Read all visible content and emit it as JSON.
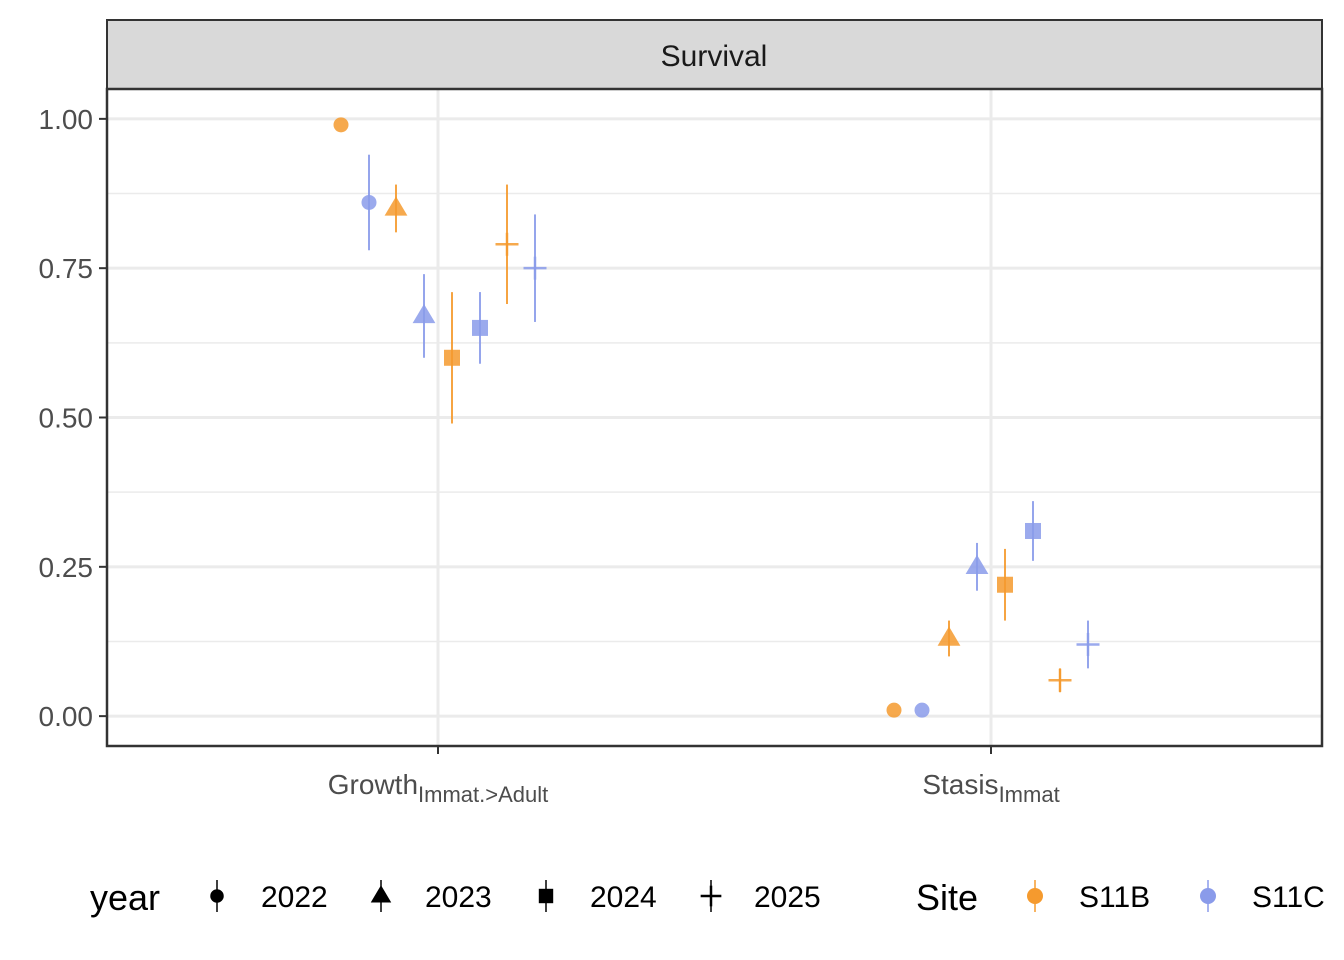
{
  "chart_data": {
    "type": "scatter",
    "facet_title": "Survival",
    "categories": [
      {
        "label": "Growth",
        "subscript": "Immat.>Adult"
      },
      {
        "label": "Stasis",
        "subscript": "Immat"
      }
    ],
    "ylim": [
      -0.05,
      1.05
    ],
    "yticks": [
      0.0,
      0.25,
      0.5,
      0.75,
      1.0
    ],
    "ytick_labels": [
      "0.00",
      "0.25",
      "0.50",
      "0.75",
      "1.00"
    ],
    "grid": true,
    "legend_position": "bottom",
    "legends": {
      "year": {
        "title": "year",
        "items": [
          {
            "label": "2022",
            "shape": "circle"
          },
          {
            "label": "2023",
            "shape": "triangle"
          },
          {
            "label": "2024",
            "shape": "square"
          },
          {
            "label": "2025",
            "shape": "plus"
          }
        ]
      },
      "site": {
        "title": "Site",
        "items": [
          {
            "label": "S11B",
            "color": "#F59A2E"
          },
          {
            "label": "S11C",
            "color": "#8A9BEA"
          }
        ]
      }
    },
    "colors": {
      "S11B": "#F59A2E",
      "S11C": "#8A9BEA"
    },
    "points": [
      {
        "category": 0,
        "year": "2022",
        "site": "S11B",
        "y": 0.99,
        "lo": 0.99,
        "hi": 0.99
      },
      {
        "category": 0,
        "year": "2022",
        "site": "S11C",
        "y": 0.86,
        "lo": 0.78,
        "hi": 0.94
      },
      {
        "category": 0,
        "year": "2023",
        "site": "S11B",
        "y": 0.85,
        "lo": 0.81,
        "hi": 0.89
      },
      {
        "category": 0,
        "year": "2023",
        "site": "S11C",
        "y": 0.67,
        "lo": 0.6,
        "hi": 0.74
      },
      {
        "category": 0,
        "year": "2024",
        "site": "S11B",
        "y": 0.6,
        "lo": 0.49,
        "hi": 0.71
      },
      {
        "category": 0,
        "year": "2024",
        "site": "S11C",
        "y": 0.65,
        "lo": 0.59,
        "hi": 0.71
      },
      {
        "category": 0,
        "year": "2025",
        "site": "S11B",
        "y": 0.79,
        "lo": 0.69,
        "hi": 0.89
      },
      {
        "category": 0,
        "year": "2025",
        "site": "S11C",
        "y": 0.75,
        "lo": 0.66,
        "hi": 0.84
      },
      {
        "category": 1,
        "year": "2022",
        "site": "S11B",
        "y": 0.01,
        "lo": 0.01,
        "hi": 0.01
      },
      {
        "category": 1,
        "year": "2022",
        "site": "S11C",
        "y": 0.01,
        "lo": 0.01,
        "hi": 0.01
      },
      {
        "category": 1,
        "year": "2023",
        "site": "S11B",
        "y": 0.13,
        "lo": 0.1,
        "hi": 0.16
      },
      {
        "category": 1,
        "year": "2023",
        "site": "S11C",
        "y": 0.25,
        "lo": 0.21,
        "hi": 0.29
      },
      {
        "category": 1,
        "year": "2024",
        "site": "S11B",
        "y": 0.22,
        "lo": 0.16,
        "hi": 0.28
      },
      {
        "category": 1,
        "year": "2024",
        "site": "S11C",
        "y": 0.31,
        "lo": 0.26,
        "hi": 0.36
      },
      {
        "category": 1,
        "year": "2025",
        "site": "S11B",
        "y": 0.06,
        "lo": 0.04,
        "hi": 0.08
      },
      {
        "category": 1,
        "year": "2025",
        "site": "S11C",
        "y": 0.12,
        "lo": 0.08,
        "hi": 0.16
      }
    ]
  }
}
